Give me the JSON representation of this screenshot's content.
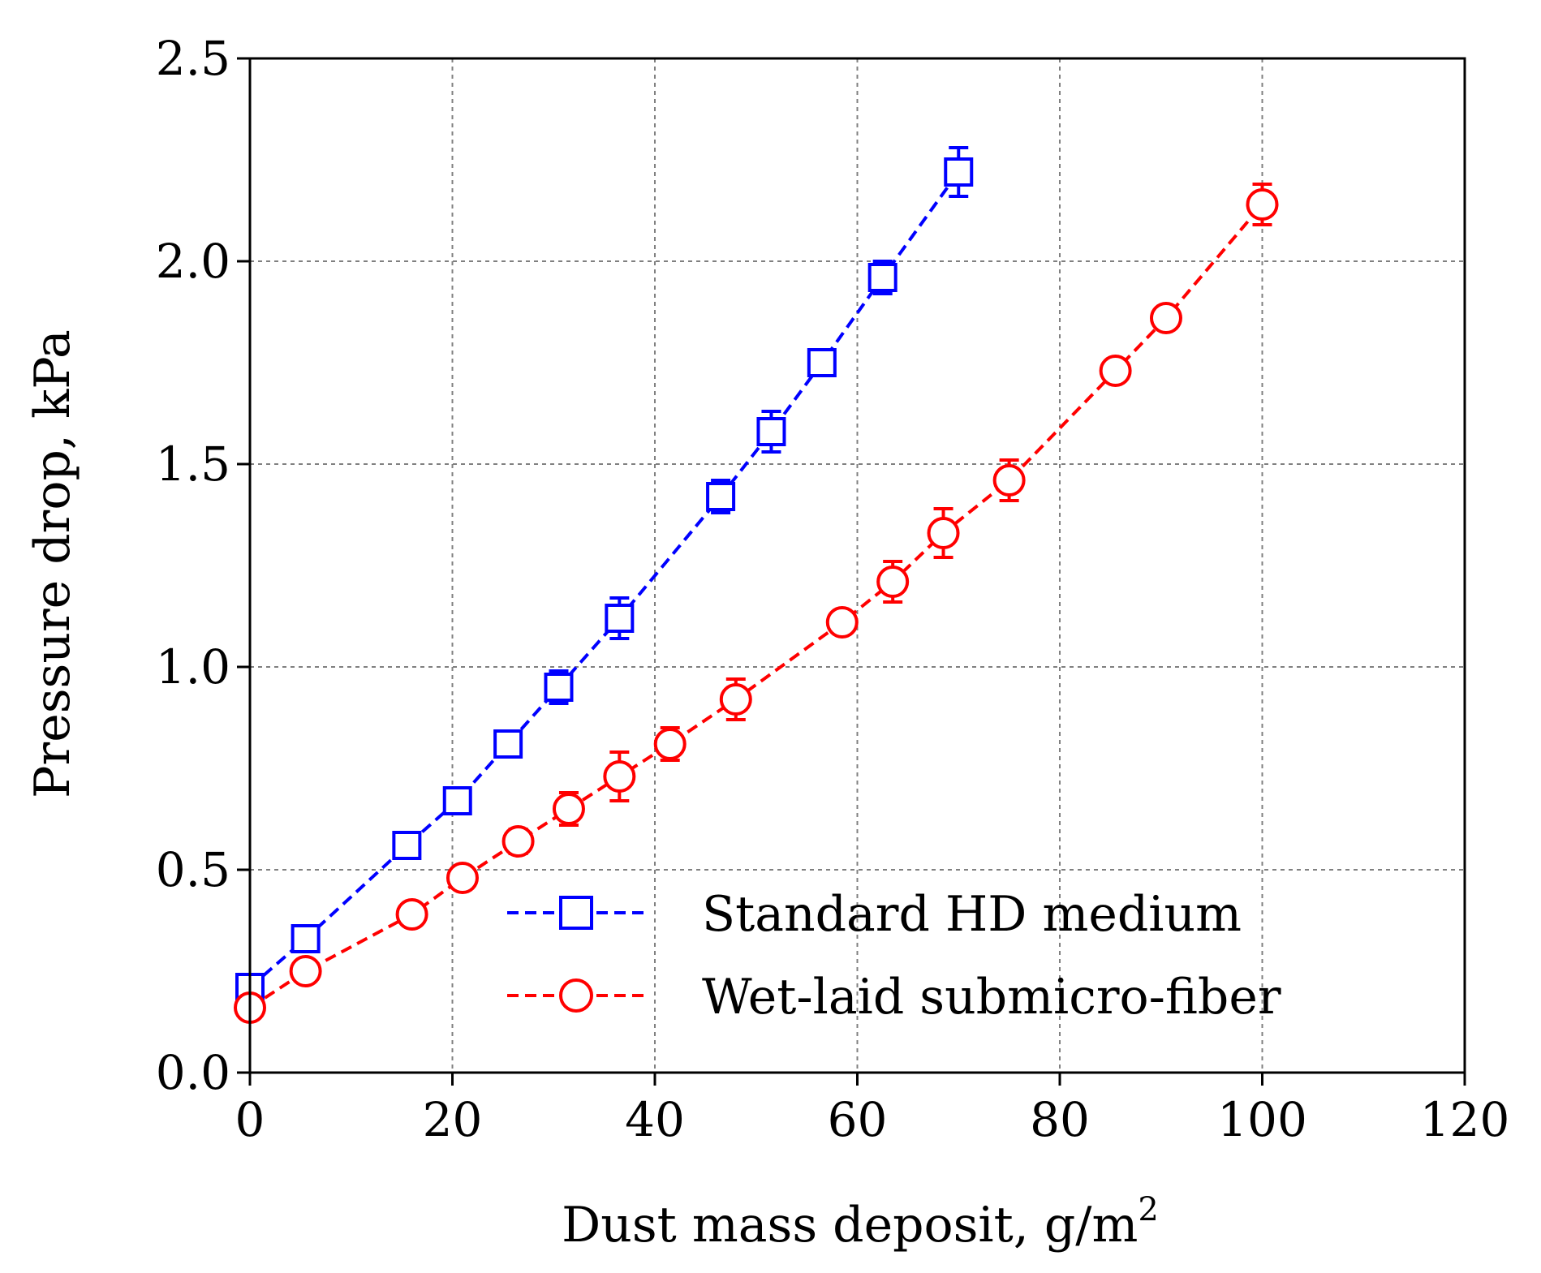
{
  "chart_data": {
    "type": "line",
    "title": "",
    "xlabel": "Dust mass deposit, g/m",
    "xlabel_superscript": "2",
    "ylabel": "Pressure drop, kPa",
    "xlim": [
      0,
      120
    ],
    "ylim": [
      0,
      2.5
    ],
    "xticks": [
      0,
      20,
      40,
      60,
      80,
      100,
      120
    ],
    "yticks": [
      0.0,
      0.5,
      1.0,
      1.5,
      2.0,
      2.5
    ],
    "xtick_labels": [
      "0",
      "20",
      "40",
      "60",
      "80",
      "100",
      "120"
    ],
    "ytick_labels": [
      "0.0",
      "0.5",
      "1.0",
      "1.5",
      "2.0",
      "2.5"
    ],
    "grid": true,
    "legend_position": "bottom-right",
    "series": [
      {
        "name": "Standard HD medium",
        "color": "#0000ff",
        "marker": "square",
        "x": [
          0,
          5.5,
          15.5,
          20.5,
          25.5,
          30.5,
          36.5,
          46.5,
          51.5,
          56.5,
          62.5,
          70
        ],
        "y": [
          0.21,
          0.33,
          0.56,
          0.67,
          0.81,
          0.95,
          1.12,
          1.42,
          1.58,
          1.75,
          1.96,
          2.22
        ],
        "err": [
          0.02,
          0.02,
          0.02,
          0.02,
          0.02,
          0.04,
          0.05,
          0.04,
          0.05,
          0.02,
          0.04,
          0.06
        ]
      },
      {
        "name": "Wet-laid submicro-fiber",
        "color": "#ff0000",
        "marker": "circle",
        "x": [
          0,
          5.5,
          16,
          21,
          26.5,
          31.5,
          36.5,
          41.5,
          48,
          58.5,
          63.5,
          68.5,
          75,
          85.5,
          90.5,
          100
        ],
        "y": [
          0.16,
          0.25,
          0.39,
          0.48,
          0.57,
          0.65,
          0.73,
          0.81,
          0.92,
          1.11,
          1.21,
          1.33,
          1.46,
          1.73,
          1.86,
          2.14
        ],
        "err": [
          0.01,
          0.01,
          0.01,
          0.01,
          0.03,
          0.04,
          0.06,
          0.04,
          0.05,
          0.01,
          0.05,
          0.06,
          0.05,
          0.01,
          0.01,
          0.05
        ]
      }
    ]
  }
}
